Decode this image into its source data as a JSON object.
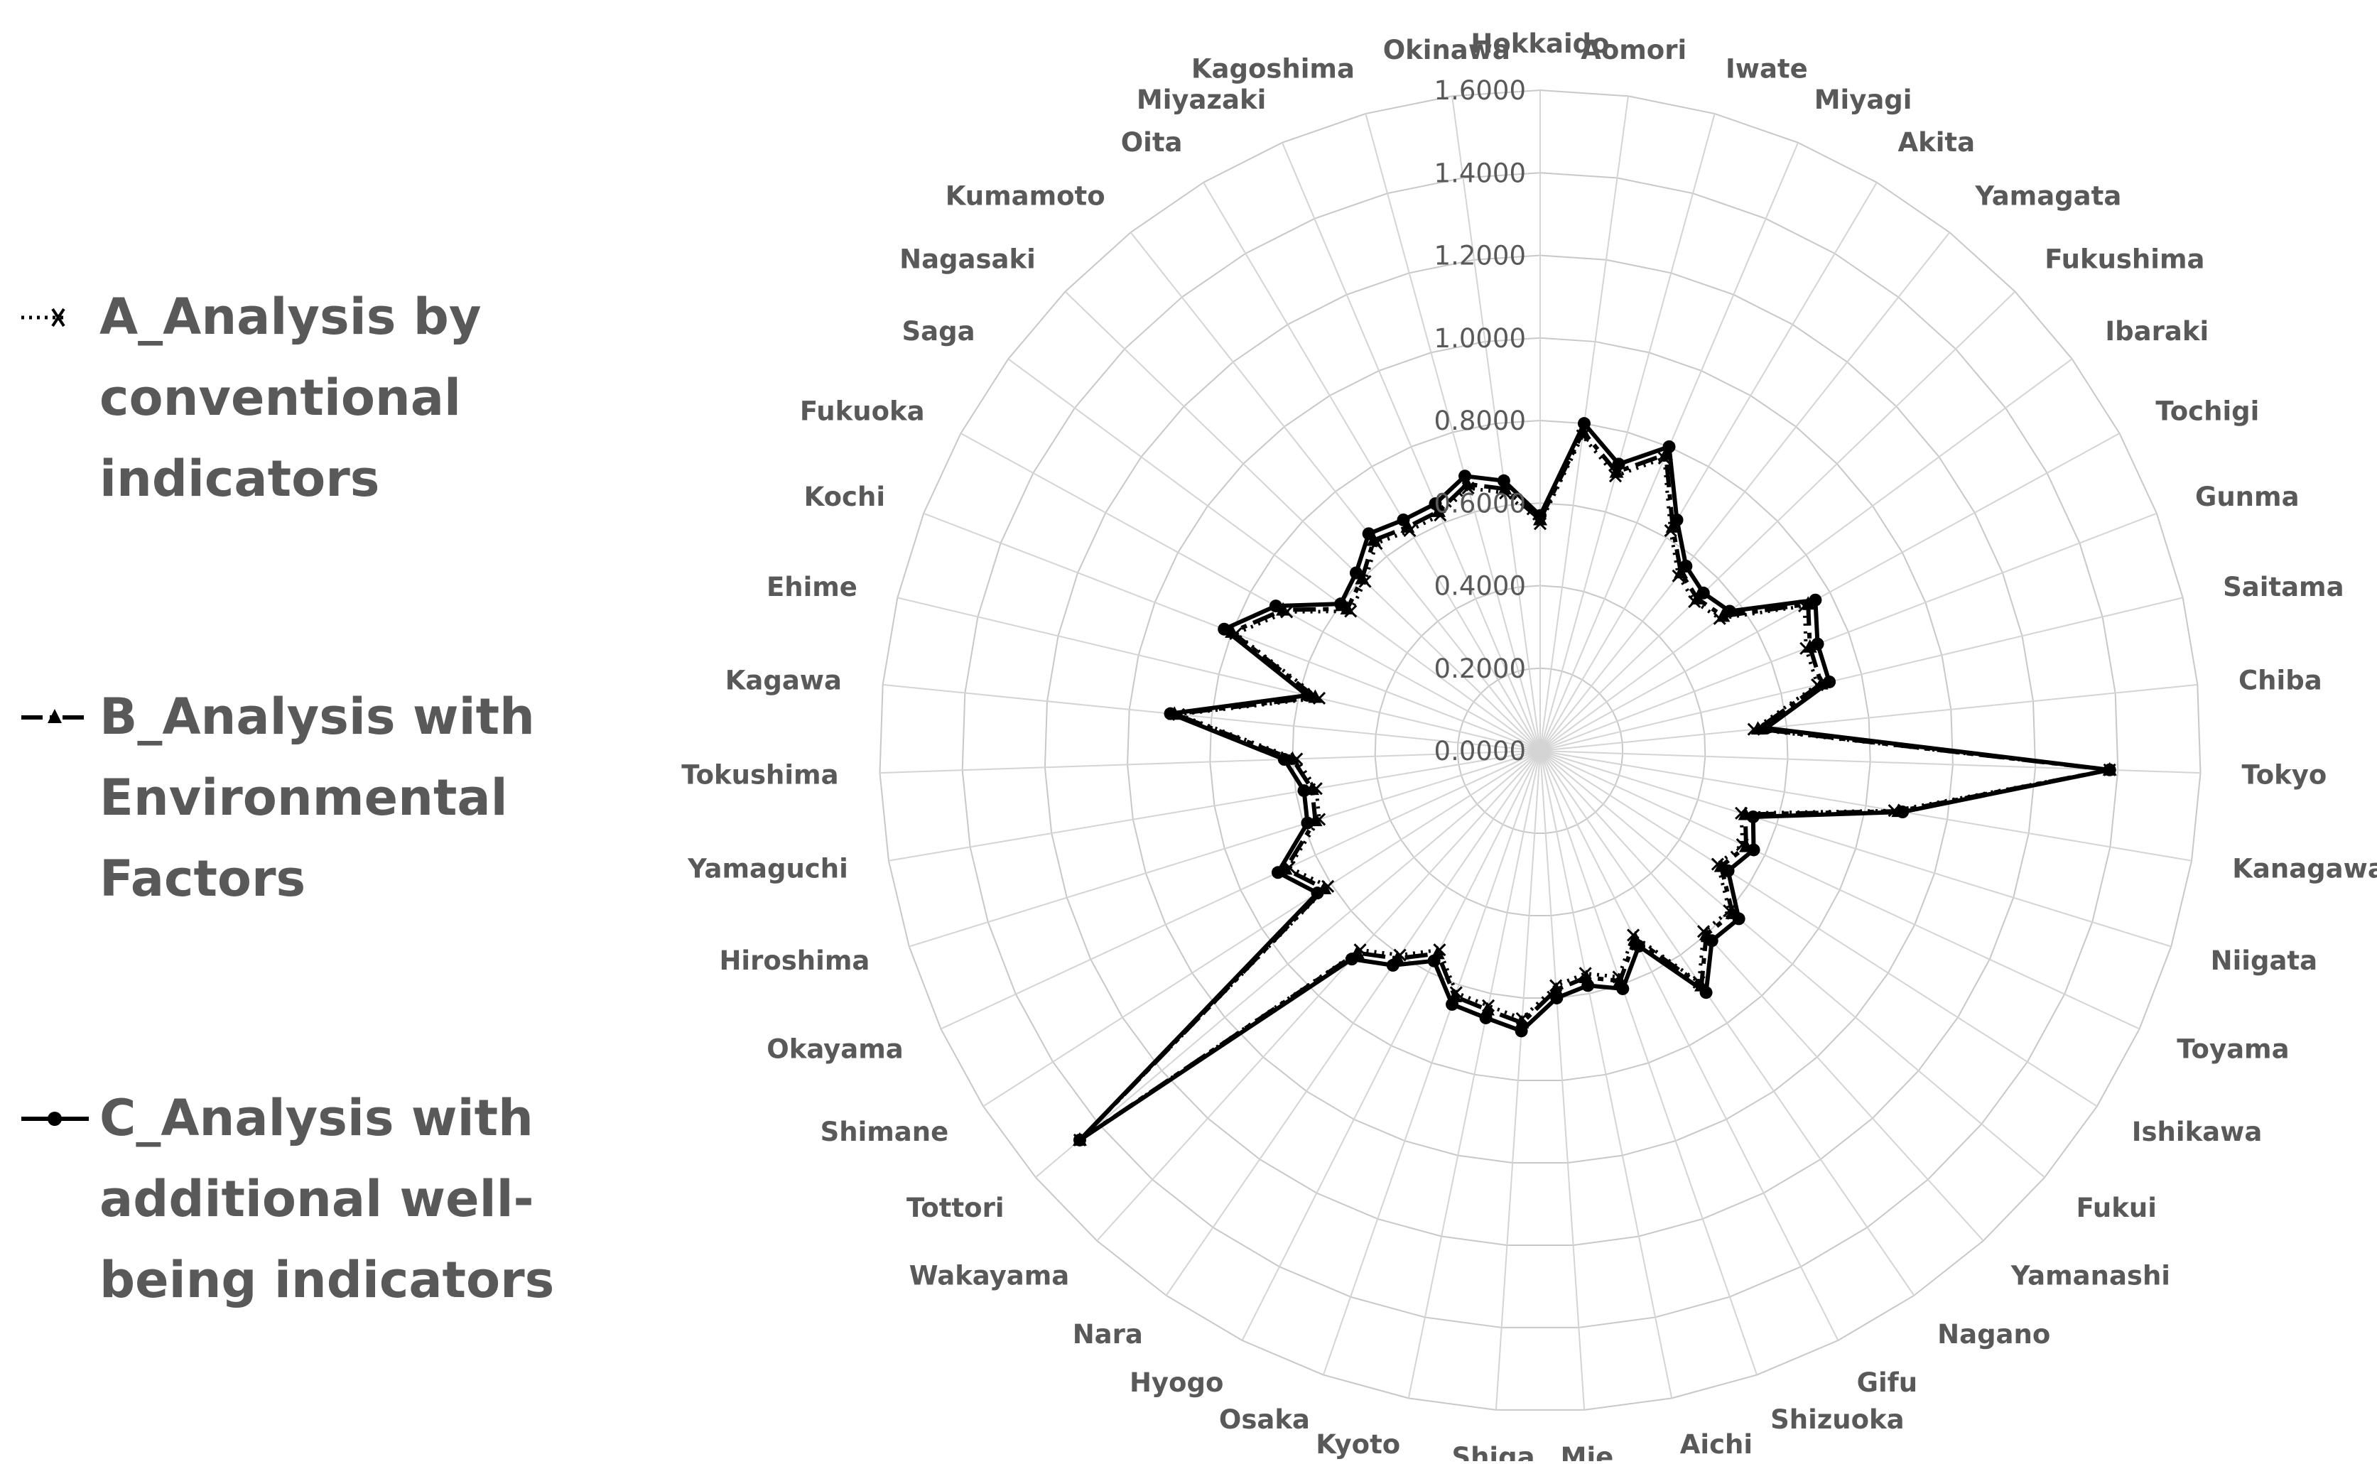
{
  "chart_data": {
    "type": "radar",
    "categories": [
      "Hokkaido",
      "Aomori",
      "Iwate",
      "Miyagi",
      "Akita",
      "Yamagata",
      "Fukushima",
      "Ibaraki",
      "Tochigi",
      "Gunma",
      "Saitama",
      "Chiba",
      "Tokyo",
      "Kanagawa",
      "Niigata",
      "Toyama",
      "Ishikawa",
      "Fukui",
      "Yamanashi",
      "Nagano",
      "Gifu",
      "Shizuoka",
      "Aichi",
      "Mie",
      "Shiga",
      "Kyoto",
      "Osaka",
      "Hyogo",
      "Nara",
      "Wakayama",
      "Tottori",
      "Shimane",
      "Okayama",
      "Hiroshima",
      "Yamaguchi",
      "Tokushima",
      "Kagawa",
      "Ehime",
      "Kochi",
      "Fukuoka",
      "Saga",
      "Nagasaki",
      "Kumamoto",
      "Oita",
      "Miyazaki",
      "Kagoshima",
      "Okinawa"
    ],
    "rlim": [
      0,
      1.6
    ],
    "ticks": [
      "0.0000",
      "0.2000",
      "0.4000",
      "0.6000",
      "0.8000",
      "1.0000",
      "1.2000",
      "1.4000",
      "1.6000"
    ],
    "grid": true,
    "legend_position": "left",
    "series": [
      {
        "name": "A_Analysis by conventional indicators",
        "style": "dotted",
        "marker": "x",
        "color": "#000000",
        "values": [
          0.55,
          0.77,
          0.69,
          0.77,
          0.62,
          0.54,
          0.52,
          0.54,
          0.73,
          0.69,
          0.69,
          0.52,
          1.38,
          0.87,
          0.51,
          0.54,
          0.51,
          0.6,
          0.59,
          0.68,
          0.5,
          0.58,
          0.55,
          0.57,
          0.65,
          0.63,
          0.62,
          0.54,
          0.6,
          0.65,
          1.46,
          0.61,
          0.67,
          0.56,
          0.55,
          0.59,
          0.88,
          0.55,
          0.79,
          0.7,
          0.57,
          0.59,
          0.64,
          0.62,
          0.62,
          0.66,
          0.63
        ]
      },
      {
        "name": "B_Analysis with Environmental Factors",
        "style": "dashdot",
        "marker": "triangle",
        "color": "#000000",
        "values": [
          0.56,
          0.78,
          0.7,
          0.78,
          0.63,
          0.55,
          0.53,
          0.55,
          0.74,
          0.7,
          0.7,
          0.53,
          1.38,
          0.88,
          0.52,
          0.55,
          0.52,
          0.61,
          0.6,
          0.69,
          0.51,
          0.59,
          0.56,
          0.58,
          0.66,
          0.64,
          0.63,
          0.55,
          0.61,
          0.66,
          1.46,
          0.62,
          0.68,
          0.57,
          0.56,
          0.6,
          0.89,
          0.56,
          0.8,
          0.71,
          0.58,
          0.6,
          0.65,
          0.63,
          0.63,
          0.67,
          0.64
        ]
      },
      {
        "name": "C_Analysis with additional well-being indicators",
        "style": "solid",
        "marker": "circle",
        "color": "#000000",
        "values": [
          0.57,
          0.8,
          0.72,
          0.8,
          0.65,
          0.57,
          0.55,
          0.57,
          0.76,
          0.72,
          0.72,
          0.55,
          1.38,
          0.89,
          0.54,
          0.57,
          0.54,
          0.63,
          0.62,
          0.71,
          0.53,
          0.61,
          0.58,
          0.6,
          0.68,
          0.66,
          0.65,
          0.57,
          0.63,
          0.68,
          1.46,
          0.64,
          0.7,
          0.59,
          0.58,
          0.62,
          0.9,
          0.58,
          0.82,
          0.73,
          0.6,
          0.62,
          0.67,
          0.65,
          0.65,
          0.69,
          0.66
        ]
      }
    ]
  },
  "legend": {
    "a_lines": [
      "A_Analysis by",
      "conventional",
      "indicators"
    ],
    "b_lines": [
      "B_Analysis with",
      "Environmental",
      "Factors"
    ],
    "c_lines": [
      "C_Analysis with",
      "additional well-",
      "being indicators"
    ]
  }
}
